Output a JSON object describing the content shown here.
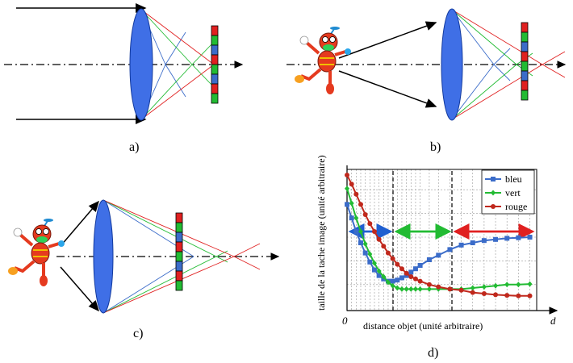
{
  "panels": {
    "a": {
      "label": "a)"
    },
    "b": {
      "label": "b)"
    },
    "c": {
      "label": "c)"
    },
    "d": {
      "label": "d)"
    }
  },
  "colors": {
    "lens": "#3f6fe6",
    "red": "#e02020",
    "green": "#22bb33",
    "blue": "#3b6cc9",
    "robot_body": "#e53a1f"
  },
  "chart_labels": {
    "ylabel": "taille de la tache image (unité arbitraire)",
    "xlabel": "distance objet (unité arbitraire)",
    "origin": "0",
    "d_axis": "d"
  },
  "chart_data": {
    "type": "line",
    "series": [
      {
        "name": "bleu",
        "color": "#3b6cc9",
        "marker": "square",
        "x": [
          0.0,
          0.2,
          0.4,
          0.6,
          0.8,
          1.0,
          1.2,
          1.4,
          1.6,
          1.8,
          2.0,
          2.2,
          2.4,
          2.6,
          2.8,
          3.0,
          3.2,
          3.6,
          4.0,
          4.5,
          5.0,
          5.5,
          6.0,
          6.5,
          7.0,
          7.5,
          8.0
        ],
        "y": [
          9.4,
          8.2,
          7.0,
          6.0,
          5.1,
          4.3,
          3.6,
          3.1,
          2.8,
          2.6,
          2.6,
          2.7,
          2.9,
          3.1,
          3.4,
          3.7,
          4.0,
          4.5,
          4.9,
          5.4,
          5.8,
          6.0,
          6.2,
          6.3,
          6.4,
          6.45,
          6.5
        ]
      },
      {
        "name": "vert",
        "color": "#22bb33",
        "marker": "diamond",
        "x": [
          0.0,
          0.2,
          0.4,
          0.6,
          0.8,
          1.0,
          1.2,
          1.4,
          1.6,
          1.8,
          2.0,
          2.2,
          2.4,
          2.6,
          2.8,
          3.0,
          3.2,
          3.6,
          4.0,
          4.5,
          5.0,
          5.5,
          6.0,
          6.5,
          7.0,
          7.5,
          8.0
        ],
        "y": [
          10.8,
          9.5,
          8.2,
          7.0,
          5.9,
          5.0,
          4.2,
          3.5,
          3.0,
          2.5,
          2.2,
          2.0,
          1.9,
          1.9,
          1.9,
          1.9,
          1.9,
          1.9,
          1.9,
          1.9,
          1.9,
          2.0,
          2.1,
          2.2,
          2.3,
          2.3,
          2.35
        ]
      },
      {
        "name": "rouge",
        "color": "#c0281c",
        "marker": "circle",
        "x": [
          0.0,
          0.2,
          0.4,
          0.6,
          0.8,
          1.0,
          1.2,
          1.4,
          1.6,
          1.8,
          2.0,
          2.2,
          2.4,
          2.6,
          2.8,
          3.0,
          3.2,
          3.6,
          4.0,
          4.5,
          5.0,
          5.5,
          6.0,
          6.5,
          7.0,
          7.5,
          8.0
        ],
        "y": [
          12.0,
          11.2,
          10.3,
          9.4,
          8.5,
          7.7,
          7.0,
          6.3,
          5.7,
          5.1,
          4.6,
          4.1,
          3.7,
          3.3,
          3.0,
          2.8,
          2.6,
          2.3,
          2.1,
          1.9,
          1.8,
          1.6,
          1.5,
          1.4,
          1.35,
          1.3,
          1.3
        ]
      }
    ],
    "xlim": [
      0,
      8.3
    ],
    "ylim": [
      0,
      12.5
    ],
    "legend_position": "top-right",
    "grid": true
  }
}
